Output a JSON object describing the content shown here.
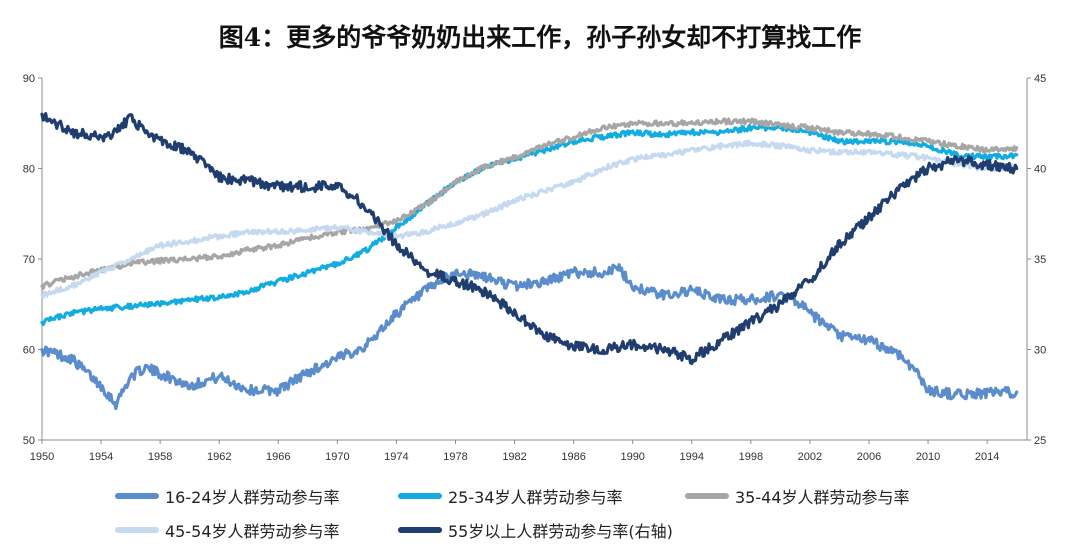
{
  "title": "图4：更多的爷爷奶奶出来工作，孙子孙女却不打算找工作",
  "chart_data": {
    "type": "line",
    "xlim": [
      1950,
      2016.7
    ],
    "x_ticks": [
      1950,
      1954,
      1958,
      1962,
      1966,
      1970,
      1974,
      1978,
      1982,
      1986,
      1990,
      1994,
      1998,
      2002,
      2006,
      2010,
      2014
    ],
    "y_left": {
      "lim": [
        50,
        90
      ],
      "ticks": [
        50,
        60,
        70,
        80,
        90
      ]
    },
    "y_right": {
      "lim": [
        25,
        45
      ],
      "ticks": [
        25,
        30,
        35,
        40,
        45
      ]
    },
    "grid": false,
    "legend_position": "bottom",
    "series": [
      {
        "name": "16-24岁人群劳动参与率",
        "axis": "left",
        "color": "#5b8ccb",
        "x": [
          1950,
          1952,
          1954,
          1955,
          1956,
          1957,
          1960,
          1962,
          1964,
          1966,
          1968,
          1970,
          1972,
          1974,
          1976,
          1978,
          1980,
          1982,
          1984,
          1986,
          1988,
          1989,
          1990,
          1992,
          1994,
          1996,
          1998,
          2000,
          2001,
          2002,
          2004,
          2006,
          2008,
          2009,
          2010,
          2012,
          2014,
          2016
        ],
        "y": [
          60,
          59,
          56,
          54,
          57,
          58,
          56,
          57,
          55.5,
          55.5,
          57.5,
          59,
          60.5,
          64,
          66.5,
          68.5,
          68,
          67,
          67.5,
          68.5,
          68.5,
          69,
          67,
          66,
          66.5,
          65.5,
          65.5,
          66,
          65.5,
          64,
          61.5,
          61,
          59.5,
          58,
          55.5,
          55,
          55.2,
          55.3
        ]
      },
      {
        "name": "25-34岁人群劳动参与率",
        "axis": "left",
        "color": "#12ace0",
        "x": [
          1950,
          1952,
          1954,
          1956,
          1958,
          1960,
          1962,
          1964,
          1966,
          1968,
          1970,
          1972,
          1974,
          1976,
          1978,
          1980,
          1982,
          1984,
          1986,
          1988,
          1990,
          1992,
          1994,
          1996,
          1998,
          2000,
          2002,
          2004,
          2006,
          2008,
          2010,
          2012,
          2014,
          2016
        ],
        "y": [
          63,
          64,
          64.5,
          64.8,
          65,
          65.5,
          65.7,
          66.5,
          67.5,
          68.5,
          69.5,
          71,
          73.5,
          76,
          78.5,
          80.2,
          81,
          82,
          83,
          83.5,
          84,
          83.7,
          84,
          84,
          84.5,
          84.5,
          84,
          83,
          83,
          83,
          82.5,
          81.5,
          81.2,
          81.5
        ]
      },
      {
        "name": "35-44岁人群劳动参与率",
        "axis": "left",
        "color": "#a6a6a6",
        "x": [
          1950,
          1952,
          1954,
          1956,
          1958,
          1960,
          1962,
          1964,
          1966,
          1968,
          1970,
          1972,
          1974,
          1976,
          1978,
          1980,
          1982,
          1984,
          1986,
          1988,
          1990,
          1992,
          1994,
          1996,
          1998,
          2000,
          2002,
          2004,
          2006,
          2008,
          2010,
          2012,
          2014,
          2016
        ],
        "y": [
          67,
          68,
          68.8,
          69.5,
          69.8,
          70,
          70.3,
          71,
          71.5,
          72.3,
          73,
          73.3,
          74.3,
          76,
          78.5,
          80.2,
          81.2,
          82.5,
          83.5,
          84.5,
          85,
          85,
          85,
          85.2,
          85.2,
          84.8,
          84.5,
          84,
          83.8,
          83.5,
          83,
          82.5,
          82,
          82.3
        ]
      },
      {
        "name": "45-54岁人群劳动参与率",
        "axis": "left",
        "color": "#c5d9ef",
        "x": [
          1950,
          1952,
          1954,
          1956,
          1958,
          1960,
          1962,
          1964,
          1966,
          1968,
          1970,
          1972,
          1974,
          1976,
          1978,
          1980,
          1982,
          1984,
          1986,
          1988,
          1990,
          1992,
          1994,
          1996,
          1998,
          2000,
          2002,
          2004,
          2006,
          2008,
          2010,
          2012,
          2014,
          2016
        ],
        "y": [
          66,
          67,
          68.5,
          70,
          71.5,
          72,
          72.5,
          73,
          73,
          73.2,
          73.5,
          73,
          72.5,
          73,
          74,
          75,
          76.5,
          77.5,
          78.5,
          80,
          81,
          81.5,
          82,
          82.5,
          82.8,
          82.5,
          82,
          81.8,
          81.8,
          81.5,
          81.2,
          80.5,
          80,
          80.2
        ]
      },
      {
        "name": "55岁以上人群劳动参与率(右轴)",
        "axis": "right",
        "color": "#1f3d6e",
        "x": [
          1950,
          1952,
          1954,
          1955,
          1956,
          1957,
          1958,
          1960,
          1962,
          1964,
          1966,
          1968,
          1970,
          1971,
          1972,
          1974,
          1976,
          1978,
          1980,
          1982,
          1984,
          1986,
          1988,
          1990,
          1992,
          1994,
          1996,
          1998,
          2000,
          2002,
          2004,
          2006,
          2008,
          2010,
          2012,
          2014,
          2016
        ],
        "y": [
          43,
          42,
          41.7,
          42,
          42.8,
          42,
          41.5,
          41,
          39.5,
          39.3,
          39,
          39,
          39,
          38.5,
          37.8,
          35.8,
          34.3,
          33.8,
          33.2,
          32,
          30.8,
          30.2,
          30,
          30.3,
          30,
          29.5,
          30.5,
          31.5,
          32.5,
          33.8,
          35.8,
          37.3,
          38.8,
          40,
          40.5,
          40.2,
          40
        ]
      }
    ]
  },
  "legend": [
    {
      "label": "16-24岁人群劳动参与率",
      "color": "#5b8ccb"
    },
    {
      "label": "25-34岁人群劳动参与率",
      "color": "#12ace0"
    },
    {
      "label": "35-44岁人群劳动参与率",
      "color": "#a6a6a6"
    },
    {
      "label": "45-54岁人群劳动参与率",
      "color": "#c5d9ef"
    },
    {
      "label": "55岁以上人群劳动参与率(右轴)",
      "color": "#1f3d6e"
    }
  ]
}
